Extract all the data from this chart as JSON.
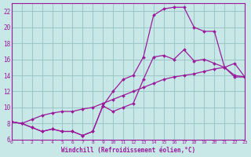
{
  "bg_color": "#c8e8e8",
  "grid_color": "#a0c8c8",
  "line_color": "#9b1a9b",
  "marker_color": "#9b1a9b",
  "xlabel": "Windchill (Refroidissement éolien,°C)",
  "xlabel_color": "#9b1a9b",
  "tick_color": "#9b1a9b",
  "xlim": [
    0,
    23
  ],
  "ylim": [
    6,
    23
  ],
  "xticks": [
    0,
    1,
    2,
    3,
    4,
    5,
    6,
    7,
    8,
    9,
    10,
    11,
    12,
    13,
    14,
    15,
    16,
    17,
    18,
    19,
    20,
    21,
    22,
    23
  ],
  "yticks": [
    6,
    8,
    10,
    12,
    14,
    16,
    18,
    20,
    22
  ],
  "line1_x": [
    0,
    1,
    2,
    3,
    4,
    5,
    6,
    7,
    8,
    9,
    10,
    11,
    12,
    13,
    14,
    15,
    16,
    17,
    18,
    19,
    20,
    21,
    22,
    23
  ],
  "line1_y": [
    8.2,
    8.0,
    7.5,
    7.0,
    7.3,
    7.0,
    7.0,
    6.5,
    7.0,
    10.2,
    9.5,
    10.0,
    10.5,
    13.5,
    16.3,
    16.5,
    16.0,
    17.2,
    15.8,
    16.0,
    15.5,
    15.0,
    13.8,
    13.8
  ],
  "line2_x": [
    0,
    1,
    2,
    3,
    4,
    5,
    6,
    7,
    8,
    9,
    10,
    11,
    12,
    13,
    14,
    15,
    16,
    17,
    18,
    19,
    20,
    21,
    22,
    23
  ],
  "line2_y": [
    8.2,
    8.0,
    7.5,
    7.0,
    7.3,
    7.0,
    7.0,
    6.5,
    7.0,
    10.2,
    12.0,
    13.5,
    14.0,
    16.3,
    21.5,
    22.3,
    22.5,
    22.5,
    20.0,
    19.5,
    19.5,
    15.0,
    14.0,
    13.8
  ],
  "line3_x": [
    0,
    1,
    2,
    3,
    4,
    5,
    6,
    7,
    8,
    9,
    10,
    11,
    12,
    13,
    14,
    15,
    16,
    17,
    18,
    19,
    20,
    21,
    22,
    23
  ],
  "line3_y": [
    8.2,
    8.0,
    8.5,
    9.0,
    9.3,
    9.5,
    9.5,
    9.8,
    10.0,
    10.5,
    11.0,
    11.5,
    12.0,
    12.5,
    13.0,
    13.5,
    13.8,
    14.0,
    14.2,
    14.5,
    14.8,
    15.0,
    15.5,
    13.8
  ]
}
